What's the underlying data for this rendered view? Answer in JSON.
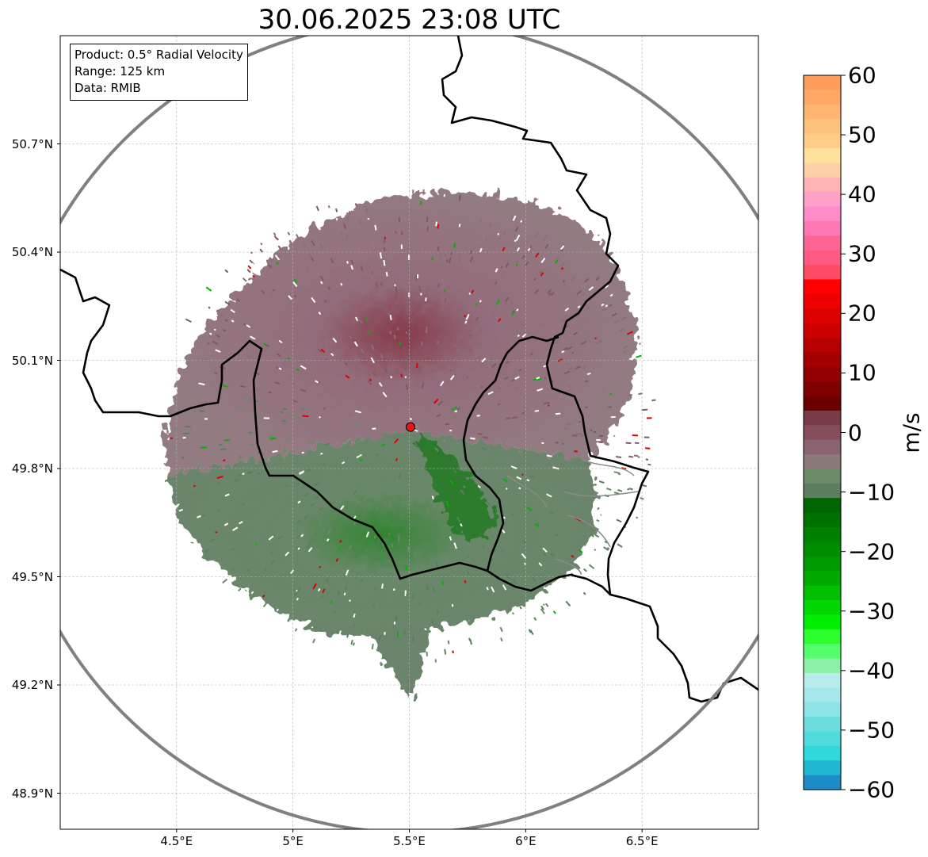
{
  "title": "30.06.2025 23:08 UTC",
  "info_box": {
    "product": "Product: 0.5° Radial Velocity",
    "range": "Range: 125 km",
    "data": "Data: RMIB"
  },
  "map": {
    "lon_range": [
      4.0,
      7.0
    ],
    "lat_range": [
      48.8,
      51.0
    ],
    "lat_ticks": [
      {
        "value": 50.7,
        "label": "50.7°N"
      },
      {
        "value": 50.4,
        "label": "50.4°N"
      },
      {
        "value": 50.1,
        "label": "50.1°N"
      },
      {
        "value": 49.8,
        "label": "49.8°N"
      },
      {
        "value": 49.5,
        "label": "49.5°N"
      },
      {
        "value": 49.2,
        "label": "49.2°N"
      },
      {
        "value": 48.9,
        "label": "48.9°N"
      }
    ],
    "lon_ticks": [
      {
        "value": 4.5,
        "label": "4.5°E"
      },
      {
        "value": 5.0,
        "label": "5°E"
      },
      {
        "value": 5.5,
        "label": "5.5°E"
      },
      {
        "value": 6.0,
        "label": "6°E"
      },
      {
        "value": 6.5,
        "label": "6.5°E"
      }
    ],
    "radar_site": {
      "lon": 5.505,
      "lat": 49.915,
      "color": "#e8141c"
    },
    "range_km": 125,
    "range_ring_color": "#808080",
    "border_color": "#000000",
    "region_border_color": "#8a8a8a"
  },
  "colorbar": {
    "unit": "m/s",
    "min": -60,
    "max": 60,
    "ticks": [
      {
        "value": 60,
        "label": "60"
      },
      {
        "value": 50,
        "label": "50"
      },
      {
        "value": 40,
        "label": "40"
      },
      {
        "value": 30,
        "label": "30"
      },
      {
        "value": 20,
        "label": "20"
      },
      {
        "value": 10,
        "label": "10"
      },
      {
        "value": 0,
        "label": "0"
      },
      {
        "value": -10,
        "label": "−10"
      },
      {
        "value": -20,
        "label": "−20"
      },
      {
        "value": -30,
        "label": "−30"
      },
      {
        "value": -40,
        "label": "−40"
      },
      {
        "value": -50,
        "label": "−50"
      },
      {
        "value": -60,
        "label": "−60"
      }
    ],
    "colors_top_to_bottom": [
      "#ff9d5c",
      "#ffa866",
      "#ffb570",
      "#ffc27c",
      "#ffcd88",
      "#ffe19c",
      "#ffd0a8",
      "#ffb4b4",
      "#ffa0c8",
      "#ff8cc8",
      "#ff78b4",
      "#ff6496",
      "#ff5a82",
      "#ff4b64",
      "#ff0000",
      "#ee0000",
      "#dd0000",
      "#cc0000",
      "#b80000",
      "#a40000",
      "#920000",
      "#7e0000",
      "#6b0000",
      "#7a3d48",
      "#864e5a",
      "#8a6470",
      "#8a7a78",
      "#6a8a68",
      "#5c7e5e",
      "#006400",
      "#007200",
      "#008000",
      "#008c00",
      "#009a00",
      "#00a800",
      "#00c000",
      "#00d800",
      "#00ee00",
      "#2cff2c",
      "#52ff6a",
      "#8cf0a8",
      "#b8ecec",
      "#a4e8ec",
      "#8ce4e6",
      "#6cdcdc",
      "#50dcdc",
      "#30d8dc",
      "#20b8d0",
      "#1e8cc8"
    ]
  }
}
